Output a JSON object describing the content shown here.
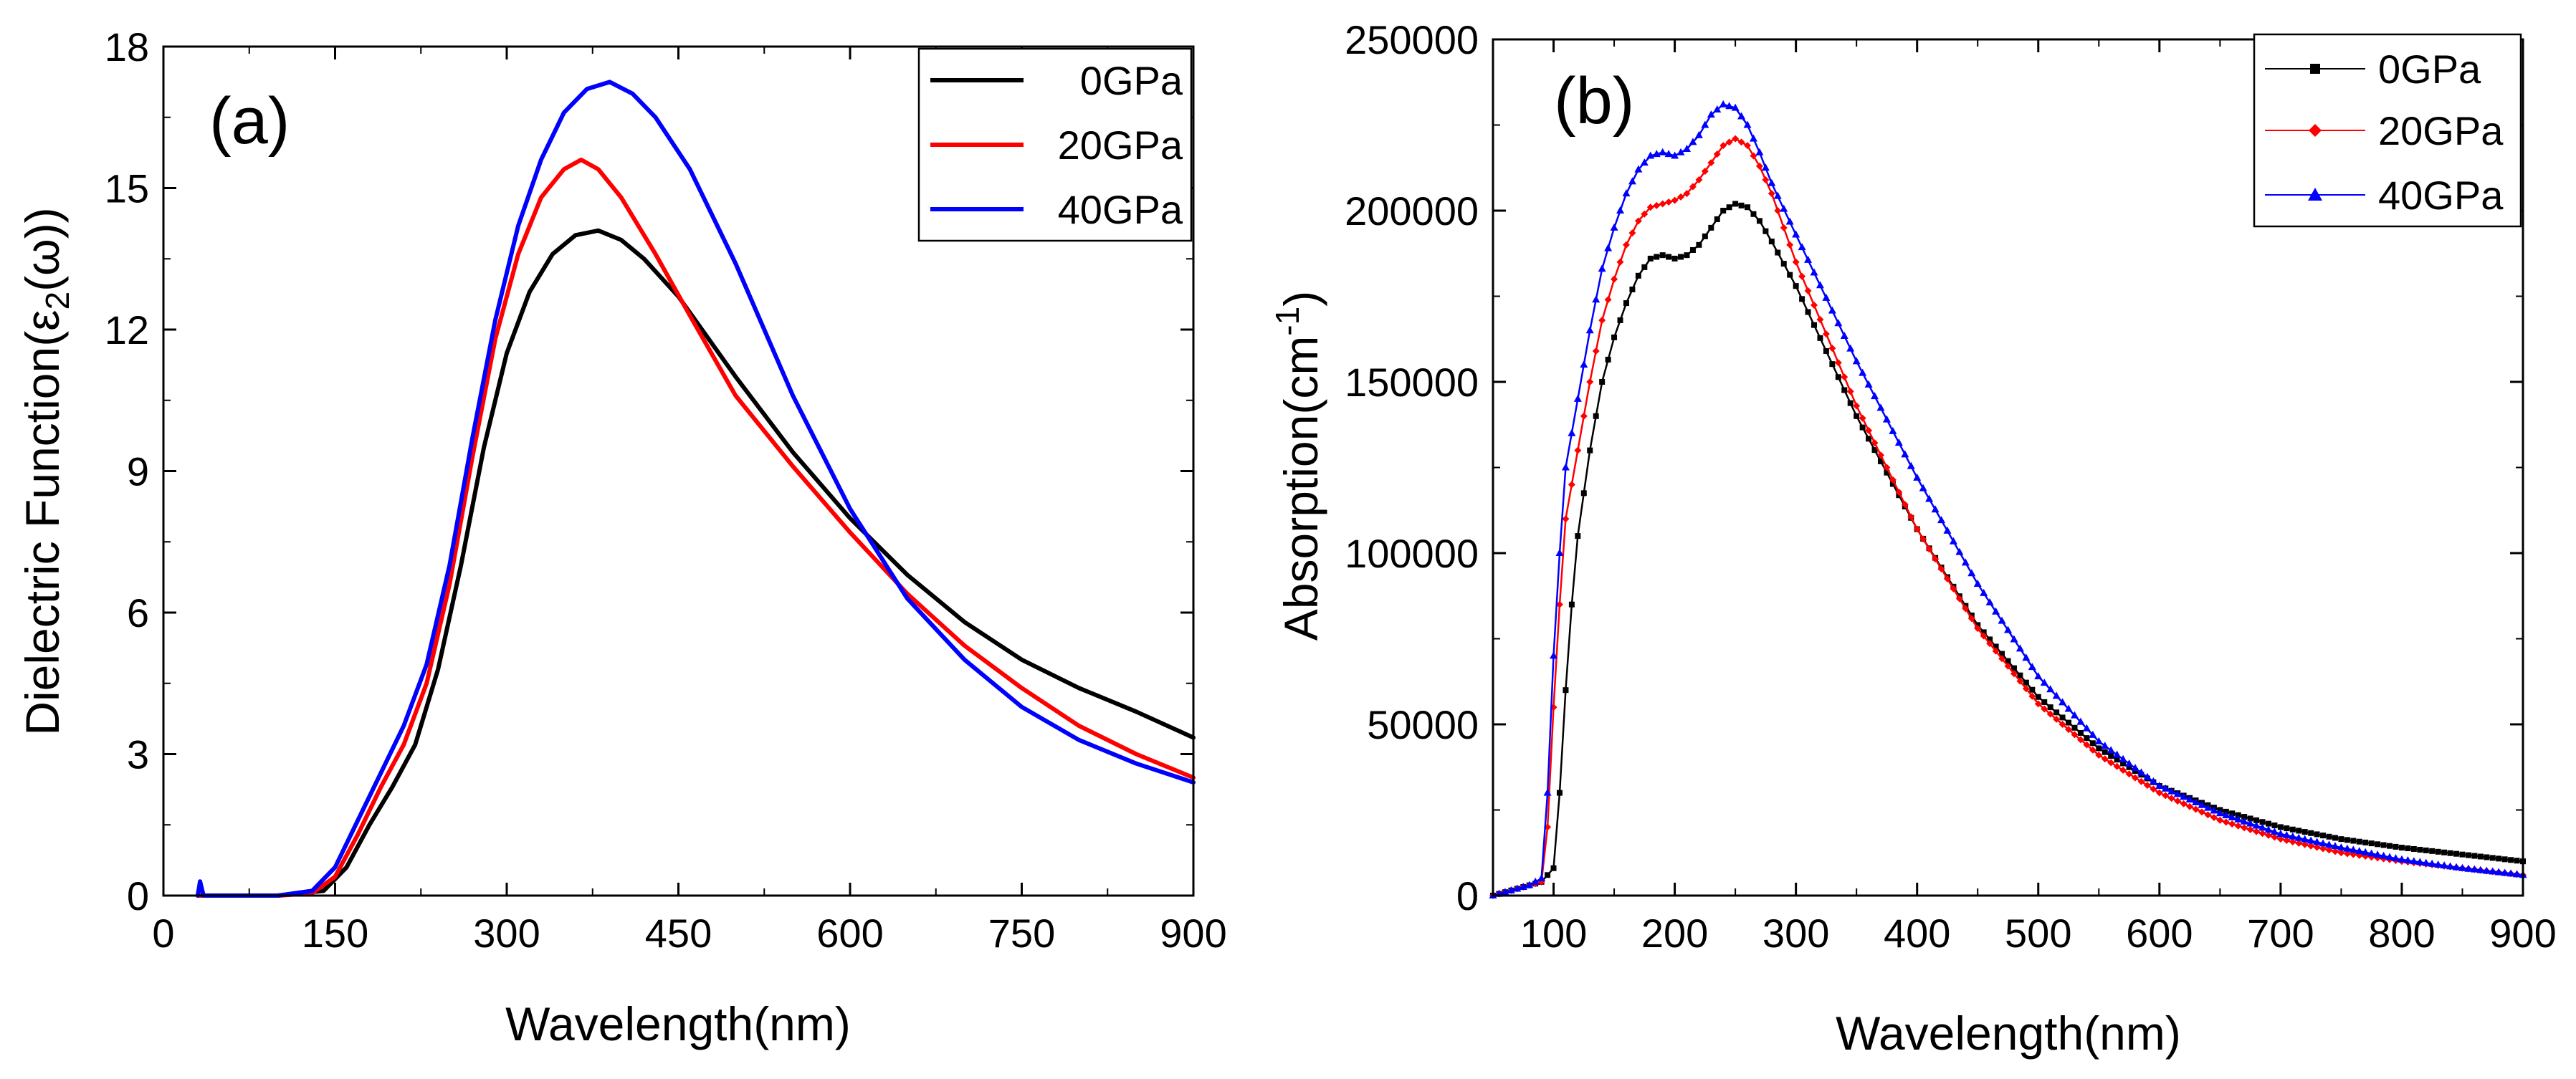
{
  "chart_data": [
    {
      "type": "line",
      "panel_label": "(a)",
      "xlabel": "Wavelength(nm)",
      "ylabel_prefix": "Dielectric Function(ε",
      "ylabel_sub": "2",
      "ylabel_suffix": "(ω))",
      "xlim": [
        0,
        900
      ],
      "ylim": [
        0,
        18
      ],
      "xticks": [
        0,
        150,
        300,
        450,
        600,
        750,
        900
      ],
      "yticks": [
        0,
        3,
        6,
        9,
        12,
        15,
        18
      ],
      "legend_position": "top-right",
      "series": [
        {
          "name": "0GPa",
          "color": "#000000",
          "x": [
            30,
            100,
            140,
            160,
            180,
            200,
            220,
            240,
            260,
            280,
            300,
            320,
            340,
            360,
            380,
            400,
            420,
            450,
            500,
            550,
            600,
            650,
            700,
            750,
            800,
            850,
            900
          ],
          "y": [
            0,
            0,
            0.1,
            0.6,
            1.5,
            2.3,
            3.2,
            4.8,
            7.0,
            9.5,
            11.5,
            12.8,
            13.6,
            14.0,
            14.1,
            13.9,
            13.5,
            12.7,
            11.0,
            9.4,
            8.0,
            6.8,
            5.8,
            5.0,
            4.4,
            3.9,
            3.35
          ]
        },
        {
          "name": "20GPa",
          "color": "#ff0000",
          "x": [
            30,
            100,
            130,
            150,
            170,
            190,
            210,
            230,
            250,
            270,
            290,
            310,
            330,
            350,
            365,
            380,
            400,
            430,
            460,
            500,
            550,
            600,
            650,
            700,
            750,
            800,
            850,
            900
          ],
          "y": [
            0,
            0,
            0.05,
            0.4,
            1.3,
            2.3,
            3.2,
            4.5,
            6.6,
            9.3,
            11.8,
            13.6,
            14.8,
            15.4,
            15.6,
            15.4,
            14.8,
            13.6,
            12.3,
            10.6,
            9.1,
            7.7,
            6.4,
            5.3,
            4.4,
            3.6,
            3.0,
            2.5
          ]
        },
        {
          "name": "40GPa",
          "color": "#0000ff",
          "x": [
            30,
            32,
            35,
            100,
            130,
            150,
            170,
            190,
            210,
            230,
            250,
            270,
            290,
            310,
            330,
            350,
            370,
            390,
            410,
            430,
            460,
            500,
            550,
            600,
            650,
            700,
            750,
            800,
            850,
            900
          ],
          "y": [
            0,
            0.3,
            0,
            0,
            0.1,
            0.6,
            1.6,
            2.6,
            3.6,
            4.9,
            7.0,
            9.7,
            12.2,
            14.2,
            15.6,
            16.6,
            17.1,
            17.25,
            17.0,
            16.5,
            15.4,
            13.4,
            10.6,
            8.2,
            6.3,
            5.0,
            4.0,
            3.3,
            2.8,
            2.4
          ]
        }
      ]
    },
    {
      "type": "scatter",
      "panel_label": "(b)",
      "xlabel": "Wavelength(nm)",
      "ylabel_prefix": "Absorption(cm",
      "ylabel_sup": "-1",
      "ylabel_suffix": ")",
      "xlim": [
        50,
        900
      ],
      "ylim": [
        0,
        250000
      ],
      "xticks": [
        100,
        200,
        300,
        400,
        500,
        600,
        700,
        800,
        900
      ],
      "yticks": [
        0,
        50000,
        100000,
        150000,
        200000,
        250000
      ],
      "legend_position": "top-right",
      "series": [
        {
          "name": "0GPa",
          "color": "#000000",
          "marker": "square",
          "x": [
            50,
            70,
            80,
            90,
            100,
            105,
            110,
            115,
            120,
            130,
            140,
            150,
            160,
            170,
            180,
            190,
            200,
            210,
            220,
            230,
            240,
            250,
            260,
            270,
            280,
            300,
            350,
            400,
            450,
            500,
            550,
            600,
            650,
            700,
            750,
            800,
            850,
            900
          ],
          "y": [
            0,
            2000,
            3000,
            4000,
            8000,
            30000,
            60000,
            85000,
            105000,
            130000,
            150000,
            163000,
            173000,
            181000,
            186000,
            187000,
            186000,
            187000,
            190000,
            195000,
            200000,
            202000,
            201000,
            197000,
            191000,
            178000,
            140000,
            107000,
            79000,
            58000,
            43000,
            32000,
            25000,
            20000,
            16500,
            14000,
            12000,
            10000
          ]
        },
        {
          "name": "20GPa",
          "color": "#ff0000",
          "marker": "diamond",
          "x": [
            50,
            70,
            80,
            90,
            95,
            100,
            105,
            110,
            120,
            130,
            140,
            150,
            160,
            170,
            180,
            190,
            200,
            210,
            220,
            230,
            240,
            250,
            260,
            270,
            280,
            300,
            350,
            400,
            450,
            500,
            550,
            600,
            650,
            700,
            750,
            800,
            850,
            900
          ],
          "y": [
            0,
            2000,
            3000,
            4000,
            20000,
            55000,
            85000,
            110000,
            130000,
            150000,
            168000,
            180000,
            190000,
            197000,
            201000,
            202000,
            203000,
            205000,
            209000,
            214000,
            219000,
            221000,
            219000,
            213000,
            205000,
            185000,
            143000,
            107000,
            78000,
            56000,
            41000,
            30000,
            22000,
            16500,
            12500,
            10000,
            8000,
            6000
          ]
        },
        {
          "name": "40GPa",
          "color": "#0000ff",
          "marker": "triangle",
          "x": [
            50,
            70,
            80,
            90,
            95,
            100,
            105,
            110,
            120,
            130,
            140,
            150,
            160,
            170,
            180,
            190,
            200,
            210,
            220,
            230,
            240,
            250,
            260,
            270,
            280,
            300,
            350,
            400,
            450,
            500,
            550,
            600,
            650,
            700,
            750,
            800,
            850,
            900
          ],
          "y": [
            0,
            2000,
            3000,
            5000,
            30000,
            70000,
            100000,
            125000,
            145000,
            165000,
            183000,
            195000,
            205000,
            212000,
            216000,
            217000,
            216000,
            218000,
            222000,
            228000,
            231000,
            230000,
            225000,
            217000,
            208000,
            193000,
            156000,
            122000,
            91000,
            64000,
            45000,
            32000,
            24000,
            18000,
            14000,
            10500,
            8000,
            6000
          ]
        }
      ]
    }
  ]
}
